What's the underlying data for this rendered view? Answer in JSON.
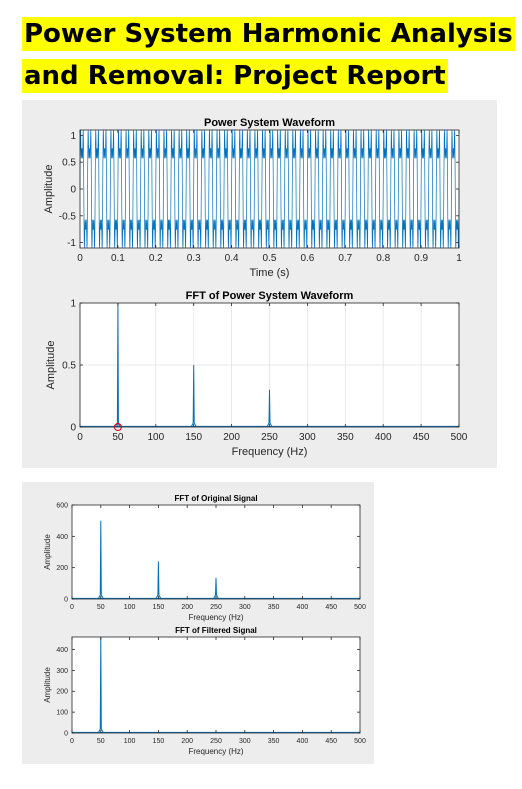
{
  "report": {
    "title_line1": "Power System Harmonic Analysis",
    "title_line2": "and Removal: Project Report",
    "highlight_color": "#ffff00"
  },
  "chart_data": [
    {
      "id": "waveform",
      "type": "line",
      "title": "Power System Waveform",
      "xlabel": "Time (s)",
      "ylabel": "Amplitude",
      "xlim": [
        0,
        1
      ],
      "ylim": [
        -1.1,
        1.1
      ],
      "xticks": [
        "0",
        "0.1",
        "0.2",
        "0.3",
        "0.4",
        "0.5",
        "0.6",
        "0.7",
        "0.8",
        "0.9",
        "1"
      ],
      "yticks": [
        "-1",
        "-0.5",
        "0",
        "0.5",
        "1"
      ],
      "series": [
        {
          "fundamental_hz": 50,
          "components": [
            {
              "freq": 50,
              "amp": 1.0
            },
            {
              "freq": 150,
              "amp": 0.5
            },
            {
              "freq": 250,
              "amp": 0.3
            }
          ]
        }
      ],
      "grid": false,
      "color": "#0072bd"
    },
    {
      "id": "fft_waveform",
      "type": "line",
      "title": "FFT of Power System Waveform",
      "xlabel": "Frequency (Hz)",
      "ylabel": "Amplitude",
      "xlim": [
        0,
        500
      ],
      "ylim": [
        0,
        1
      ],
      "xticks": [
        "0",
        "50",
        "100",
        "150",
        "200",
        "250",
        "300",
        "350",
        "400",
        "450",
        "500"
      ],
      "yticks": [
        "0",
        "0.5",
        "1"
      ],
      "peaks": [
        {
          "x": 50,
          "y": 1.0
        },
        {
          "x": 150,
          "y": 0.5
        },
        {
          "x": 250,
          "y": 0.3
        }
      ],
      "marker": {
        "x": 50,
        "y": 0,
        "color": "#e8000b"
      },
      "grid": true,
      "color": "#0072bd"
    },
    {
      "id": "fft_original",
      "type": "line",
      "title": "FFT of Original Signal",
      "xlabel": "Frequency (Hz)",
      "ylabel": "Amplitude",
      "xlim": [
        0,
        500
      ],
      "ylim": [
        0,
        600
      ],
      "xticks": [
        "0",
        "50",
        "100",
        "150",
        "200",
        "250",
        "300",
        "350",
        "400",
        "450",
        "500"
      ],
      "yticks": [
        "0",
        "200",
        "400",
        "600"
      ],
      "peaks": [
        {
          "x": 50,
          "y": 500
        },
        {
          "x": 150,
          "y": 240
        },
        {
          "x": 250,
          "y": 135
        }
      ],
      "grid": false,
      "color": "#0072bd"
    },
    {
      "id": "fft_filtered",
      "type": "line",
      "title": "FFT of Filtered Signal",
      "xlabel": "Frequency (Hz)",
      "ylabel": "Amplitude",
      "xlim": [
        0,
        500
      ],
      "ylim": [
        0,
        460
      ],
      "xticks": [
        "0",
        "50",
        "100",
        "150",
        "200",
        "250",
        "300",
        "350",
        "400",
        "450",
        "500"
      ],
      "yticks": [
        "0",
        "100",
        "200",
        "300",
        "400"
      ],
      "peaks": [
        {
          "x": 50,
          "y": 460
        }
      ],
      "grid": false,
      "color": "#0072bd"
    }
  ]
}
